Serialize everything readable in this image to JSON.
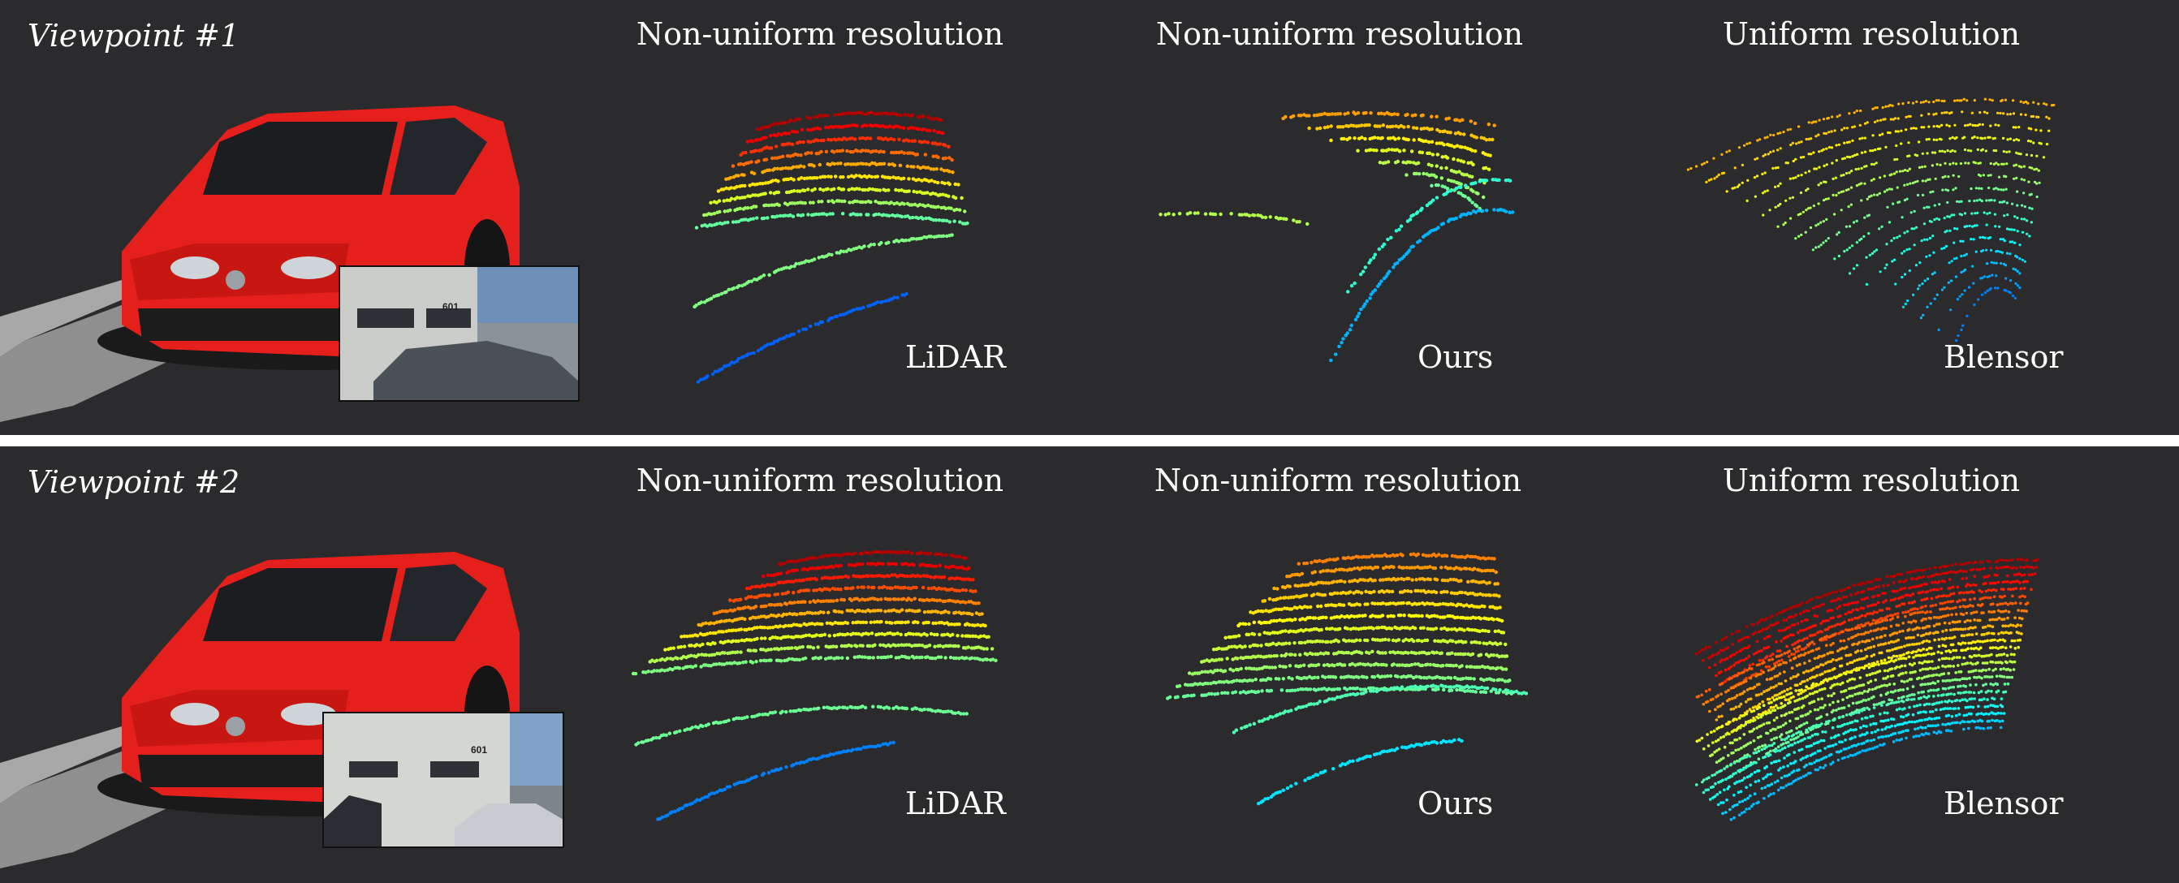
{
  "viewpoints": [
    {
      "label": "Viewpoint #1",
      "columns": [
        {
          "title": "Non-uniform resolution",
          "method": "LiDAR"
        },
        {
          "title": "Non-uniform resolution",
          "method": "Ours"
        },
        {
          "title": "Uniform resolution",
          "method": "Blensor"
        }
      ],
      "inset_building_number": "601"
    },
    {
      "label": "Viewpoint #2",
      "columns": [
        {
          "title": "Non-uniform resolution",
          "method": "LiDAR"
        },
        {
          "title": "Non-uniform resolution",
          "method": "Ours"
        },
        {
          "title": "Uniform resolution",
          "method": "Blensor"
        }
      ],
      "inset_building_number": "601"
    }
  ],
  "colors": {
    "panel_background": "#2b2b2d",
    "car_body": "#e5201c",
    "point_colormap": "jet (blue-cyan-green-yellow-red by height)"
  }
}
